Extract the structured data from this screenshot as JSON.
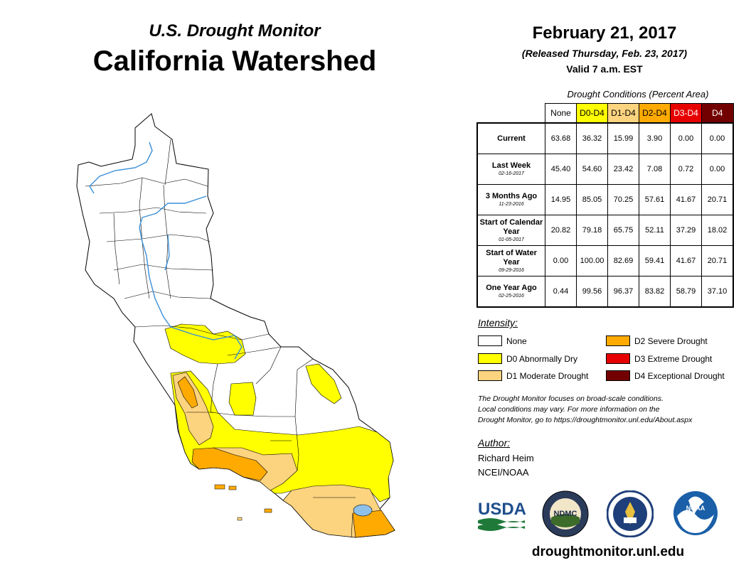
{
  "header": {
    "subtitle": "U.S. Drought Monitor",
    "title": "California Watershed",
    "date": "February 21, 2017",
    "released": "(Released Thursday, Feb. 23, 2017)",
    "valid": "Valid 7 a.m. EST"
  },
  "table": {
    "caption": "Drought Conditions (Percent Area)",
    "columns": [
      {
        "label": "None",
        "color": "#ffffff",
        "text_color": "#000000"
      },
      {
        "label": "D0-D4",
        "color": "#ffff00",
        "text_color": "#000000"
      },
      {
        "label": "D1-D4",
        "color": "#fcd37f",
        "text_color": "#000000"
      },
      {
        "label": "D2-D4",
        "color": "#ffaa00",
        "text_color": "#000000"
      },
      {
        "label": "D3-D4",
        "color": "#e60000",
        "text_color": "#ffffff"
      },
      {
        "label": "D4",
        "color": "#730000",
        "text_color": "#ffffff"
      }
    ],
    "rows": [
      {
        "label": "Current",
        "sublabel": "",
        "values": [
          "63.68",
          "36.32",
          "15.99",
          "3.90",
          "0.00",
          "0.00"
        ]
      },
      {
        "label": "Last Week",
        "sublabel": "02-16-2017",
        "values": [
          "45.40",
          "54.60",
          "23.42",
          "7.08",
          "0.72",
          "0.00"
        ]
      },
      {
        "label": "3 Months Ago",
        "sublabel": "11-23-2016",
        "values": [
          "14.95",
          "85.05",
          "70.25",
          "57.61",
          "41.67",
          "20.71"
        ]
      },
      {
        "label": "Start of Calendar Year",
        "sublabel": "01-05-2017",
        "values": [
          "20.82",
          "79.18",
          "65.75",
          "52.11",
          "37.29",
          "18.02"
        ]
      },
      {
        "label": "Start of Water Year",
        "sublabel": "09-29-2016",
        "values": [
          "0.00",
          "100.00",
          "82.69",
          "59.41",
          "41.67",
          "20.71"
        ]
      },
      {
        "label": "One Year Ago",
        "sublabel": "02-25-2016",
        "values": [
          "0.44",
          "99.56",
          "96.37",
          "83.82",
          "58.79",
          "37.10"
        ]
      }
    ]
  },
  "legend": {
    "title": "Intensity:",
    "items": [
      {
        "label": "None",
        "color": "#ffffff"
      },
      {
        "label": "D0 Abnormally Dry",
        "color": "#ffff00"
      },
      {
        "label": "D1 Moderate Drought",
        "color": "#fcd37f"
      },
      {
        "label": "D2 Severe Drought",
        "color": "#ffaa00"
      },
      {
        "label": "D3 Extreme Drought",
        "color": "#e60000"
      },
      {
        "label": "D4 Exceptional Drought",
        "color": "#730000"
      }
    ]
  },
  "note": {
    "line1": "The Drought Monitor focuses on broad-scale conditions.",
    "line2": "Local conditions may vary. For more information on the",
    "line3": "Drought Monitor, go to https://droughtmonitor.unl.edu/About.aspx"
  },
  "author": {
    "title": "Author:",
    "name": "Richard Heim",
    "org": "NCEI/NOAA"
  },
  "logos": {
    "usda": "USDA",
    "ndmc": "NDMC",
    "noaa": "NOAA"
  },
  "footer": {
    "url": "droughtmonitor.unl.edu"
  }
}
